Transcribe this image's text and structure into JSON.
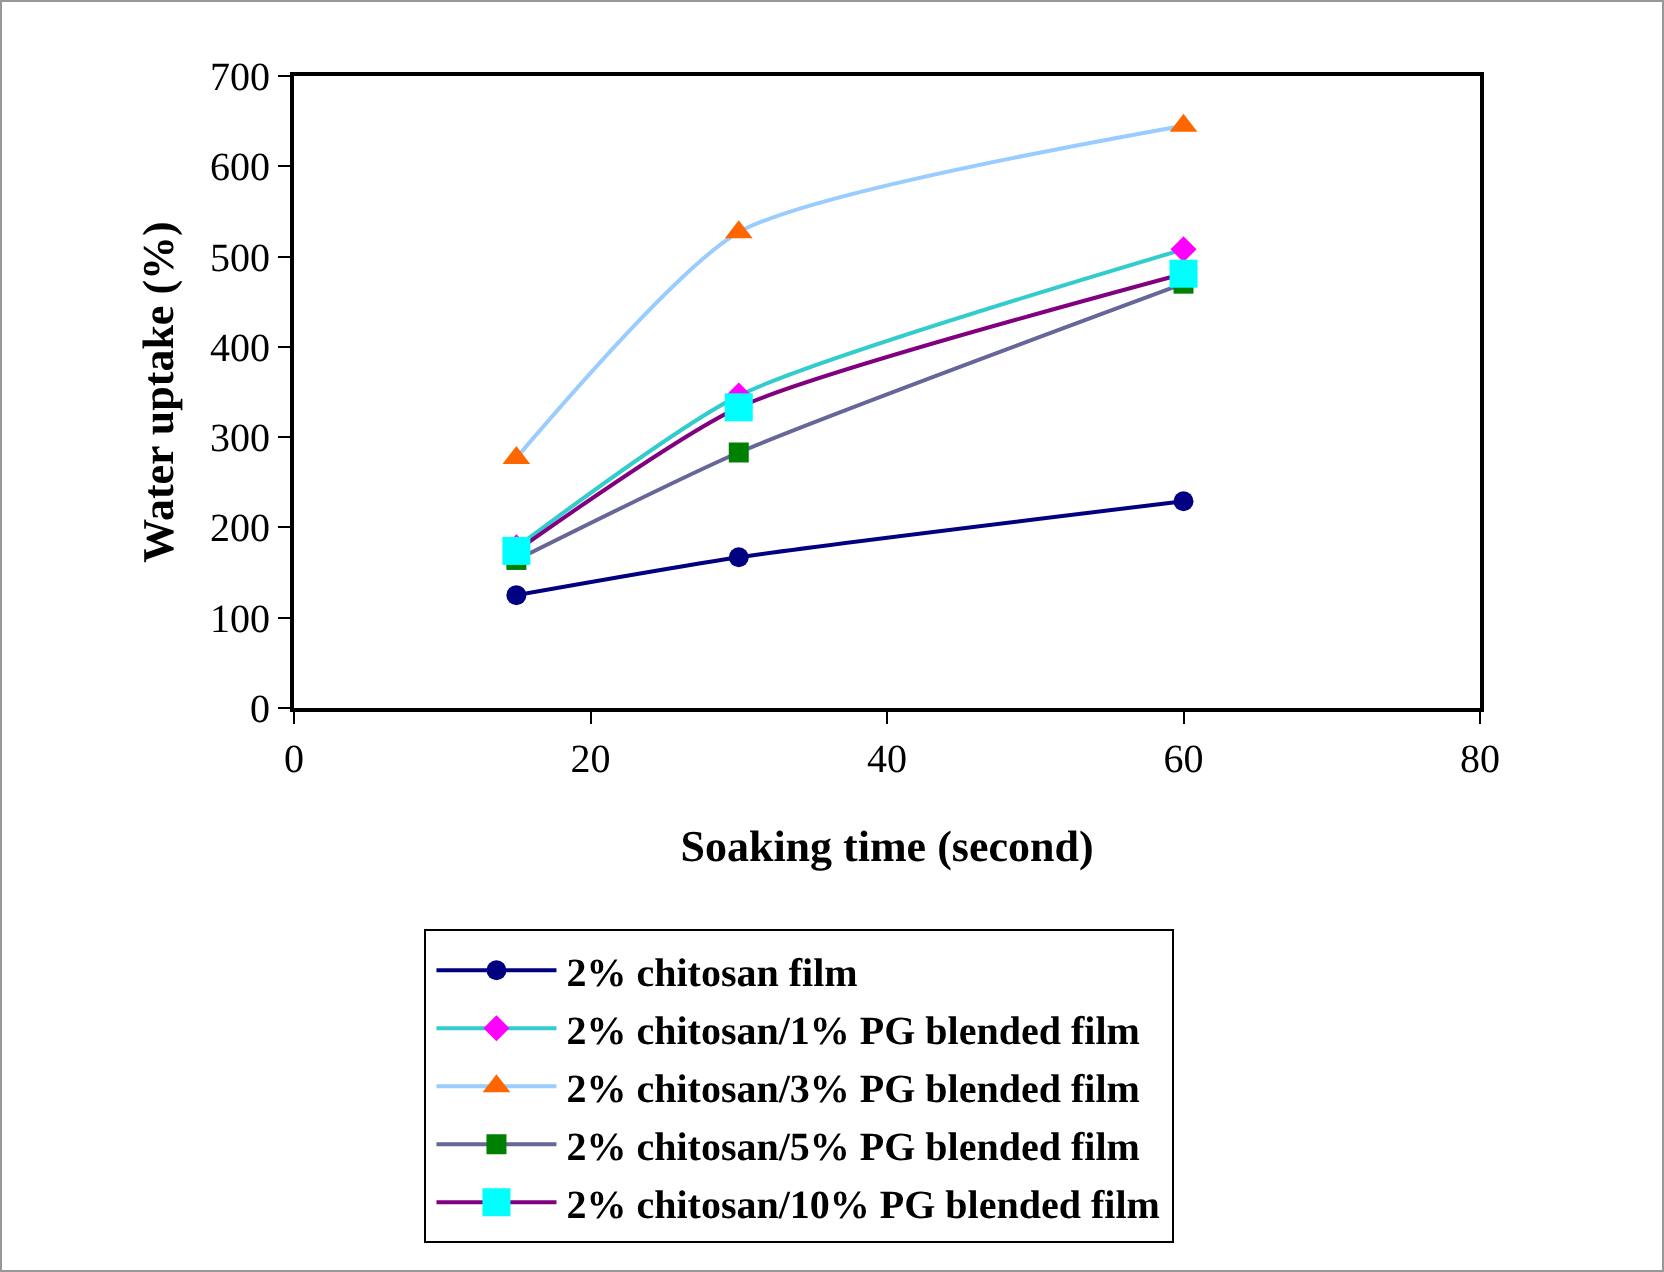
{
  "chart_data": {
    "type": "line",
    "xlabel": "Soaking time (second)",
    "ylabel": "Water uptake (%)",
    "x": [
      15,
      30,
      60
    ],
    "xlim": [
      0,
      80
    ],
    "xticks": [
      0,
      20,
      40,
      60,
      80
    ],
    "ylim": [
      0,
      700
    ],
    "yticks": [
      0,
      100,
      200,
      300,
      400,
      500,
      600,
      700
    ],
    "grid": false,
    "legend": "bottom",
    "line_style": "solid",
    "series": [
      {
        "name": "2% chitosan film",
        "color": "#000080",
        "colors": [
          "#000080",
          "#000080",
          "#000080"
        ],
        "marker": "circle",
        "values": [
          125,
          167,
          229
        ]
      },
      {
        "name": "2% chitosan/1% PG blended film",
        "color": "#33cccc",
        "colors": [
          "#ff00ff",
          "#ff00ff",
          "#ff00ff"
        ],
        "marker": "diamond",
        "values": [
          178,
          346,
          508
        ]
      },
      {
        "name": "2% chitosan/3% PG blended film",
        "color": "#99ccff",
        "colors": [
          "#ff6600",
          "#ff6600",
          "#ff6600"
        ],
        "marker": "triangle",
        "values": [
          277,
          527,
          645
        ]
      },
      {
        "name": "2% chitosan/5% PG blended film",
        "color": "#666699",
        "colors": [
          "#008000",
          "#008000",
          "#008000"
        ],
        "marker": "square",
        "values": [
          164,
          283,
          470
        ]
      },
      {
        "name": "2% chitosan/10% PG blended film",
        "color": "#800080",
        "colors": [
          "#00ffff",
          "#00ffff",
          "#00ffff"
        ],
        "marker": "square",
        "values": [
          174,
          333,
          481
        ]
      }
    ]
  }
}
